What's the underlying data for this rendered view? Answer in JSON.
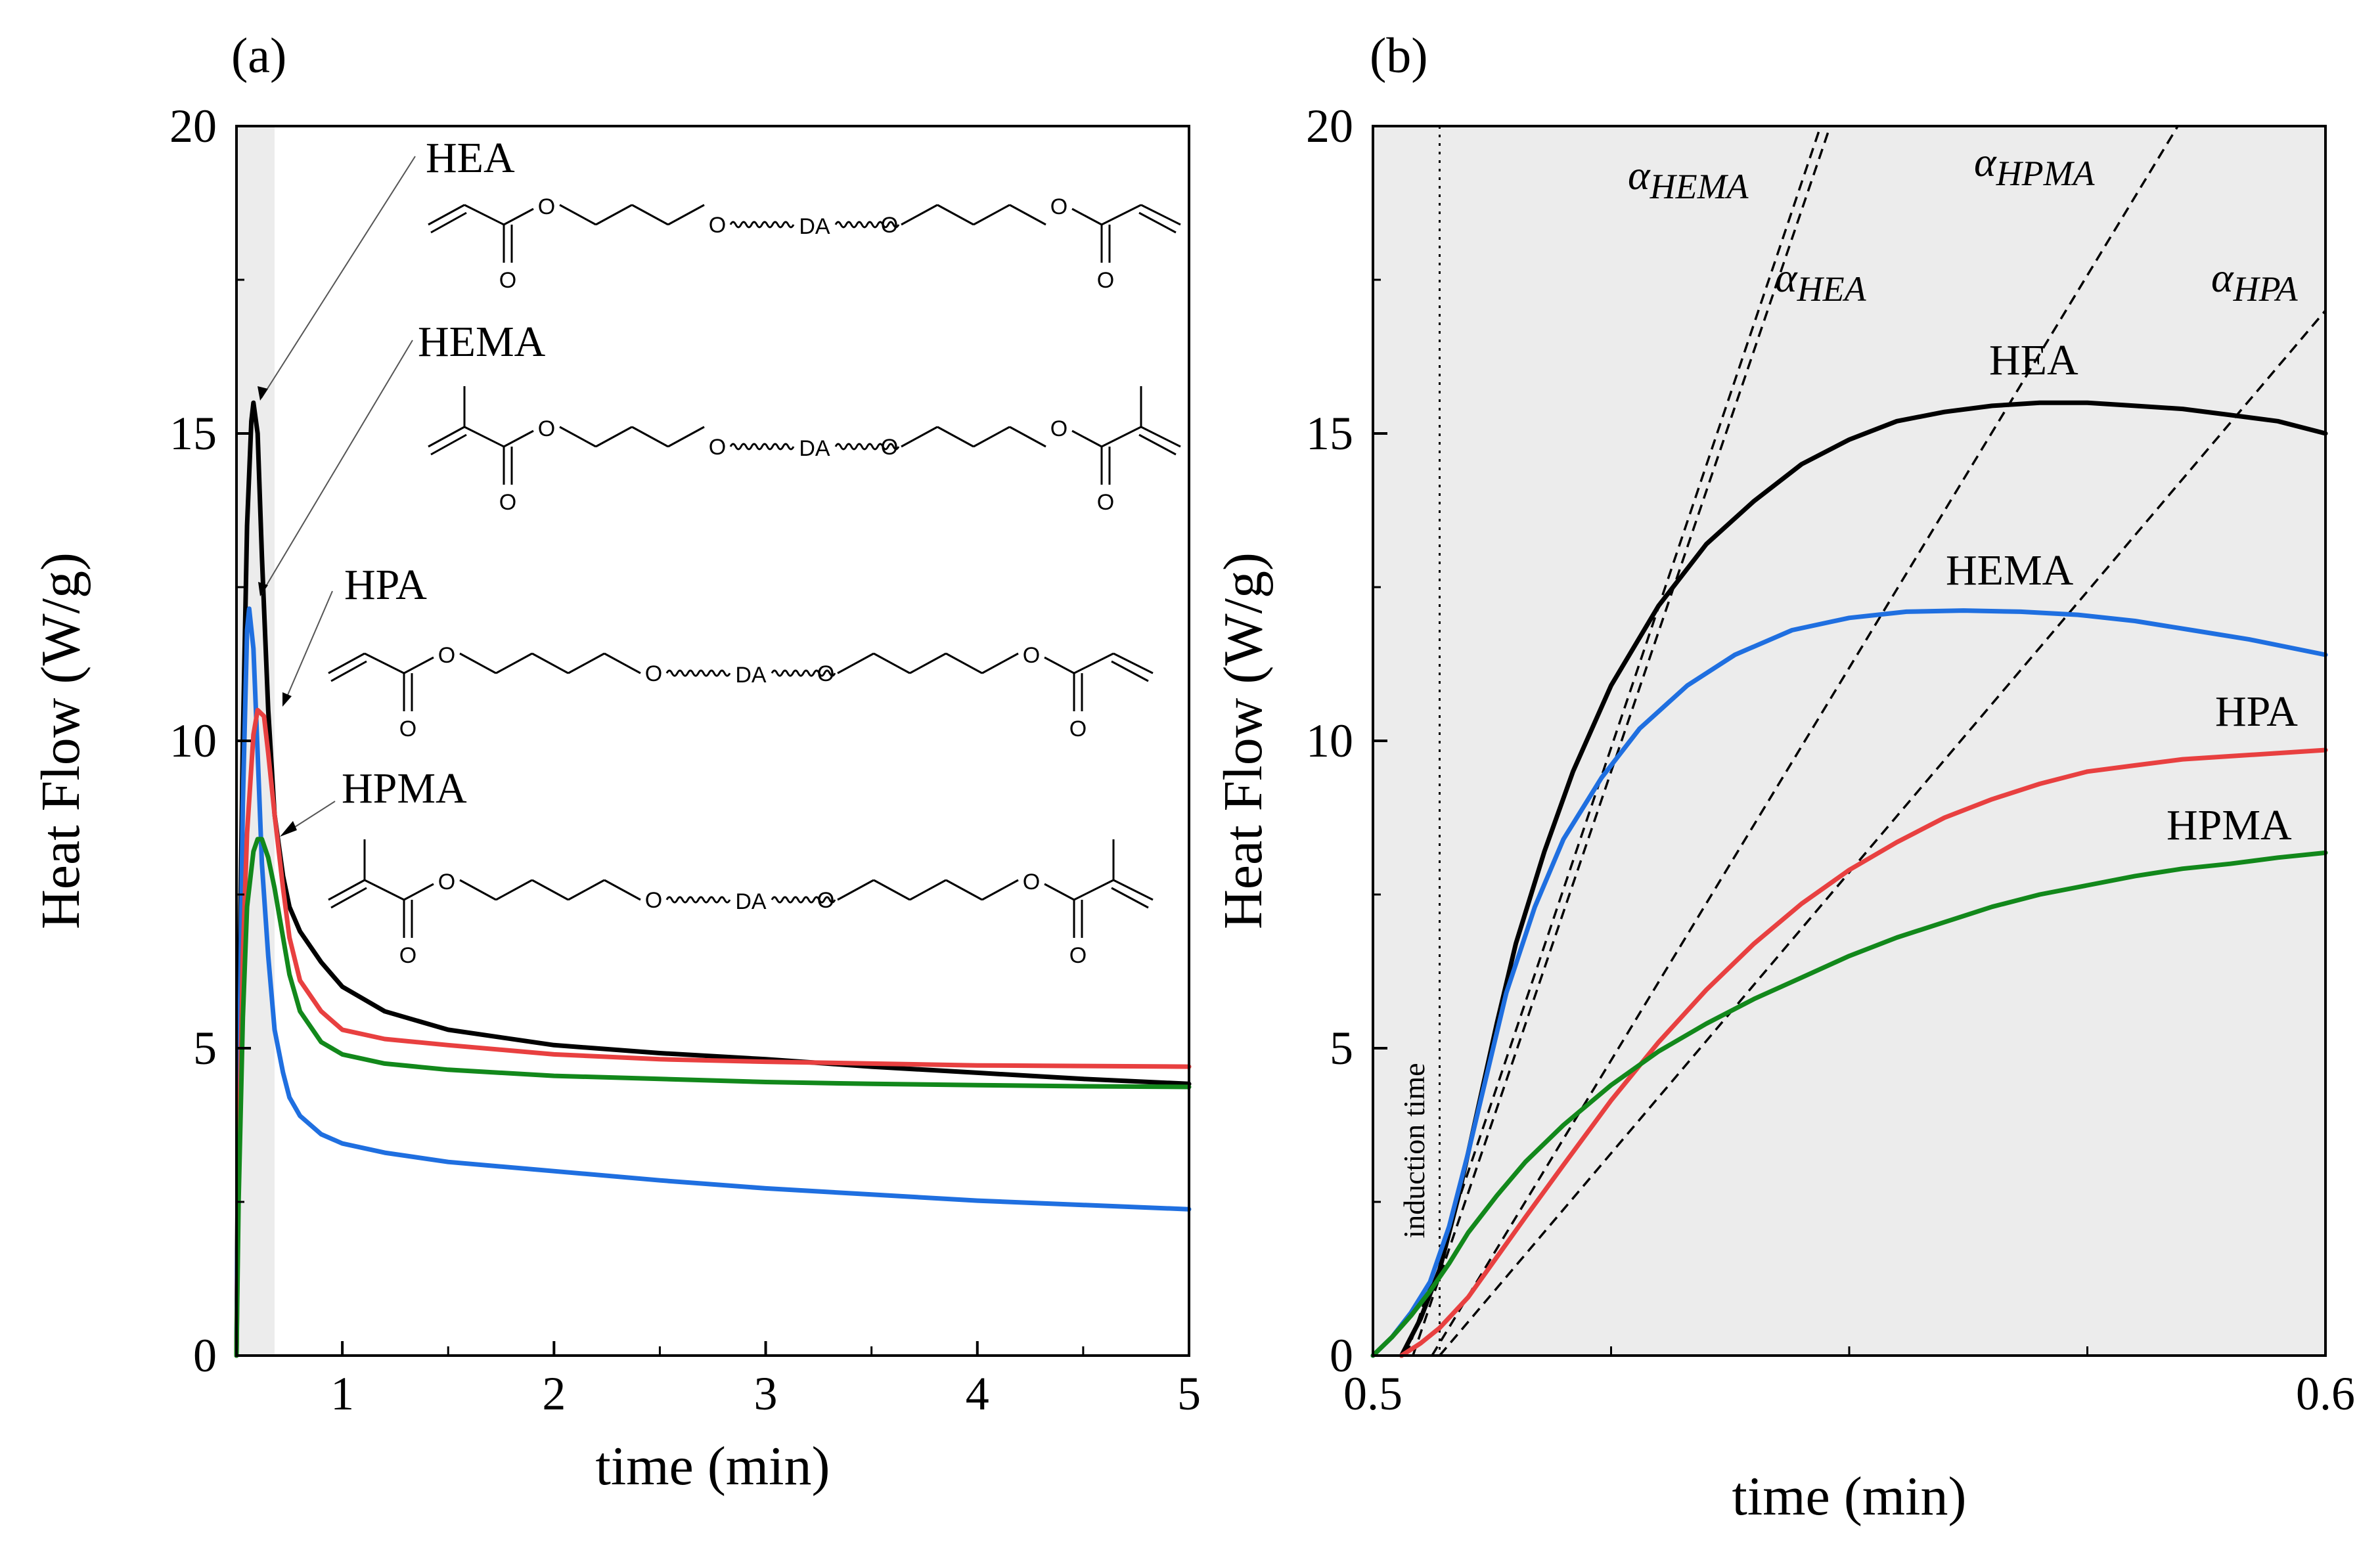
{
  "figure": {
    "panels": [
      "(a)",
      "(b)"
    ]
  },
  "colors": {
    "HEA": "#000000",
    "HEMA": "#1f6fe0",
    "HPA": "#e84040",
    "HPMA": "#12881b",
    "shade": "#ececec"
  },
  "chart_data": [
    {
      "panel": "(a)",
      "type": "line",
      "title": "",
      "xlabel": "time (min)",
      "ylabel": "Heat Flow (W/g)",
      "xlim": [
        0.5,
        5
      ],
      "ylim": [
        0,
        20
      ],
      "xticks": [
        1,
        2,
        3,
        4,
        5
      ],
      "yticks": [
        0,
        5,
        10,
        15,
        20
      ],
      "shaded_region_x": [
        0.5,
        0.68
      ],
      "annotations": [
        "HEA",
        "HEMA",
        "HPA",
        "HPMA"
      ],
      "chem_labels": [
        "O",
        "DA"
      ],
      "series": [
        {
          "name": "HEA",
          "x": [
            0.5,
            0.51,
            0.53,
            0.55,
            0.57,
            0.58,
            0.6,
            0.62,
            0.65,
            0.68,
            0.72,
            0.75,
            0.8,
            0.9,
            1.0,
            1.2,
            1.5,
            2.0,
            2.5,
            3.0,
            3.5,
            4.0,
            4.5,
            5.0
          ],
          "y": [
            0,
            5,
            10,
            13.5,
            15.2,
            15.5,
            15.0,
            13.0,
            10.5,
            8.8,
            7.8,
            7.3,
            6.9,
            6.4,
            6.0,
            5.6,
            5.3,
            5.05,
            4.92,
            4.82,
            4.7,
            4.6,
            4.5,
            4.42
          ]
        },
        {
          "name": "HEMA",
          "x": [
            0.5,
            0.51,
            0.53,
            0.55,
            0.56,
            0.58,
            0.6,
            0.62,
            0.65,
            0.68,
            0.72,
            0.75,
            0.8,
            0.9,
            1.0,
            1.2,
            1.5,
            2.0,
            2.5,
            3.0,
            3.5,
            4.0,
            4.5,
            5.0
          ],
          "y": [
            0,
            4,
            9,
            11.8,
            12.15,
            11.5,
            9.8,
            8.0,
            6.5,
            5.3,
            4.6,
            4.2,
            3.9,
            3.6,
            3.45,
            3.3,
            3.15,
            3.0,
            2.85,
            2.72,
            2.62,
            2.52,
            2.45,
            2.38
          ]
        },
        {
          "name": "HPA",
          "x": [
            0.5,
            0.51,
            0.53,
            0.55,
            0.58,
            0.6,
            0.63,
            0.65,
            0.68,
            0.72,
            0.75,
            0.8,
            0.9,
            1.0,
            1.2,
            1.5,
            2.0,
            2.5,
            3.0,
            3.5,
            4.0,
            4.5,
            5.0
          ],
          "y": [
            0,
            3,
            6.5,
            8.5,
            10.1,
            10.5,
            10.4,
            9.8,
            8.8,
            7.6,
            6.8,
            6.1,
            5.6,
            5.3,
            5.15,
            5.05,
            4.9,
            4.82,
            4.78,
            4.75,
            4.72,
            4.71,
            4.7
          ]
        },
        {
          "name": "HPMA",
          "x": [
            0.5,
            0.51,
            0.53,
            0.55,
            0.58,
            0.6,
            0.62,
            0.65,
            0.68,
            0.72,
            0.75,
            0.8,
            0.9,
            1.0,
            1.2,
            1.5,
            2.0,
            2.5,
            3.0,
            3.5,
            4.0,
            4.5,
            5.0
          ],
          "y": [
            0,
            2.5,
            5.5,
            7.3,
            8.2,
            8.4,
            8.4,
            8.1,
            7.6,
            6.8,
            6.2,
            5.6,
            5.1,
            4.9,
            4.75,
            4.65,
            4.55,
            4.5,
            4.45,
            4.42,
            4.4,
            4.38,
            4.37
          ]
        }
      ]
    },
    {
      "panel": "(b)",
      "type": "line",
      "title": "",
      "xlabel": "time (min)",
      "ylabel": "Heat Flow (W/g)",
      "xlim": [
        0.5,
        0.6
      ],
      "ylim": [
        0,
        20
      ],
      "xticks": [
        0.5,
        0.6
      ],
      "xtick_labels": [
        "0.5",
        "0.6"
      ],
      "minor_xticks": [
        0.525,
        0.55,
        0.575
      ],
      "yticks": [
        0,
        5,
        10,
        15,
        20
      ],
      "shaded_region_x": [
        0.5,
        0.6
      ],
      "induction_time": {
        "x": 0.507,
        "label": "induction time"
      },
      "tangent_lines": [
        {
          "name": "α_HEMA",
          "label_main": "α",
          "label_sub": "HEMA",
          "x": [
            0.5035,
            0.547
          ],
          "y": [
            0,
            20
          ]
        },
        {
          "name": "α_HEA",
          "label_main": "α",
          "label_sub": "HEA",
          "x": [
            0.5042,
            0.548
          ],
          "y": [
            0,
            20
          ]
        },
        {
          "name": "α_HPMA",
          "label_main": "α",
          "label_sub": "HPMA",
          "x": [
            0.5062,
            0.5845
          ],
          "y": [
            0,
            20
          ]
        },
        {
          "name": "α_HPA",
          "label_main": "α",
          "label_sub": "HPA",
          "x": [
            0.507,
            0.6
          ],
          "y": [
            0,
            17
          ]
        }
      ],
      "series": [
        {
          "name": "HEA",
          "x": [
            0.503,
            0.505,
            0.507,
            0.509,
            0.511,
            0.513,
            0.515,
            0.518,
            0.521,
            0.525,
            0.53,
            0.535,
            0.54,
            0.545,
            0.55,
            0.555,
            0.56,
            0.565,
            0.57,
            0.575,
            0.58,
            0.585,
            0.59,
            0.595,
            0.6
          ],
          "y": [
            0,
            0.6,
            1.4,
            2.6,
            4.0,
            5.4,
            6.7,
            8.2,
            9.5,
            10.9,
            12.2,
            13.2,
            13.9,
            14.5,
            14.9,
            15.2,
            15.35,
            15.45,
            15.5,
            15.5,
            15.45,
            15.4,
            15.3,
            15.2,
            15.0
          ]
        },
        {
          "name": "HEMA",
          "x": [
            0.5,
            0.502,
            0.504,
            0.506,
            0.508,
            0.51,
            0.512,
            0.514,
            0.517,
            0.52,
            0.524,
            0.528,
            0.533,
            0.538,
            0.544,
            0.55,
            0.556,
            0.562,
            0.568,
            0.574,
            0.58,
            0.586,
            0.592,
            0.6
          ],
          "y": [
            0,
            0.3,
            0.7,
            1.2,
            2.1,
            3.3,
            4.6,
            5.9,
            7.3,
            8.4,
            9.4,
            10.2,
            10.9,
            11.4,
            11.8,
            12.0,
            12.1,
            12.12,
            12.1,
            12.05,
            11.95,
            11.8,
            11.65,
            11.4
          ]
        },
        {
          "name": "HPA",
          "x": [
            0.503,
            0.505,
            0.507,
            0.51,
            0.513,
            0.516,
            0.52,
            0.525,
            0.53,
            0.535,
            0.54,
            0.545,
            0.55,
            0.555,
            0.56,
            0.565,
            0.57,
            0.575,
            0.58,
            0.585,
            0.59,
            0.595,
            0.6
          ],
          "y": [
            0,
            0.2,
            0.45,
            0.95,
            1.6,
            2.25,
            3.1,
            4.15,
            5.1,
            5.95,
            6.7,
            7.35,
            7.9,
            8.35,
            8.75,
            9.05,
            9.3,
            9.5,
            9.6,
            9.7,
            9.75,
            9.8,
            9.85
          ]
        },
        {
          "name": "HPMA",
          "x": [
            0.5,
            0.502,
            0.504,
            0.506,
            0.508,
            0.51,
            0.513,
            0.516,
            0.52,
            0.525,
            0.53,
            0.535,
            0.54,
            0.545,
            0.55,
            0.555,
            0.56,
            0.565,
            0.57,
            0.575,
            0.58,
            0.585,
            0.59,
            0.595,
            0.6
          ],
          "y": [
            0,
            0.3,
            0.65,
            1.05,
            1.5,
            2.0,
            2.6,
            3.15,
            3.75,
            4.4,
            4.95,
            5.4,
            5.8,
            6.15,
            6.5,
            6.8,
            7.05,
            7.3,
            7.5,
            7.65,
            7.8,
            7.92,
            8.0,
            8.1,
            8.18
          ]
        }
      ]
    }
  ]
}
